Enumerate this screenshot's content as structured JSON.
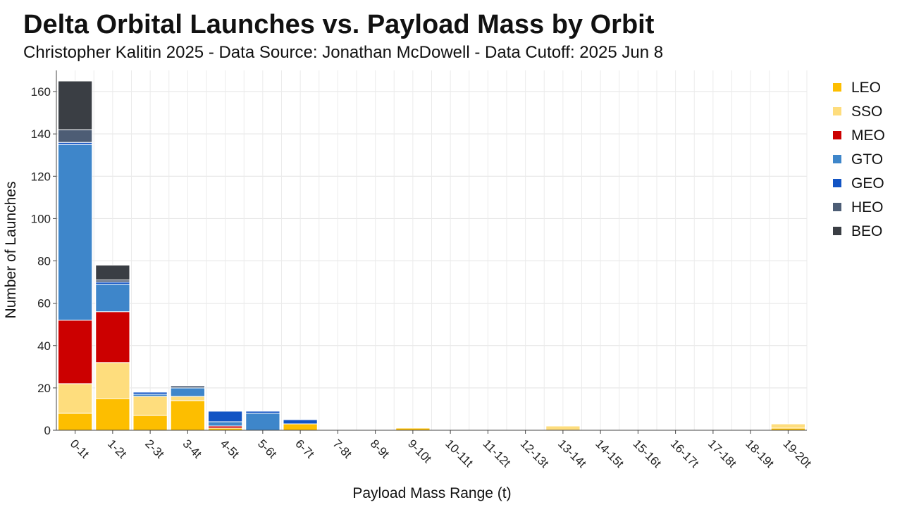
{
  "chart_data": {
    "type": "bar",
    "stacked": true,
    "title": "Delta Orbital Launches vs. Payload Mass by Orbit",
    "subtitle": "Christopher Kalitin 2025 - Data Source: Jonathan McDowell - Data Cutoff: 2025 Jun 8",
    "xlabel": "Payload Mass Range (t)",
    "ylabel": "Number of Launches",
    "ylim": [
      0,
      170
    ],
    "yticks": [
      0,
      20,
      40,
      60,
      80,
      100,
      120,
      140,
      160
    ],
    "grid": true,
    "legend_position": "right",
    "categories": [
      "0-1t",
      "1-2t",
      "2-3t",
      "3-4t",
      "4-5t",
      "5-6t",
      "6-7t",
      "7-8t",
      "8-9t",
      "9-10t",
      "10-11t",
      "11-12t",
      "12-13t",
      "13-14t",
      "14-15t",
      "15-16t",
      "16-17t",
      "17-18t",
      "18-19t",
      "19-20t"
    ],
    "series": [
      {
        "name": "LEO",
        "color": "#FDBE00",
        "values": [
          8,
          15,
          7,
          14,
          1,
          0,
          3,
          0,
          0,
          1,
          0,
          0,
          0,
          0,
          0,
          0,
          0,
          0,
          0,
          1
        ]
      },
      {
        "name": "SSO",
        "color": "#FEDD7D",
        "values": [
          14,
          17,
          9,
          2,
          0,
          0,
          0,
          0,
          0,
          0,
          0,
          0,
          0,
          2,
          0,
          0,
          0,
          0,
          0,
          2
        ]
      },
      {
        "name": "MEO",
        "color": "#CC0000",
        "values": [
          30,
          24,
          0,
          0,
          1,
          0,
          0,
          0,
          0,
          0,
          0,
          0,
          0,
          0,
          0,
          0,
          0,
          0,
          0,
          0
        ]
      },
      {
        "name": "GTO",
        "color": "#3E86CA",
        "values": [
          83,
          13,
          1,
          4,
          2,
          8,
          0,
          0,
          0,
          0,
          0,
          0,
          0,
          0,
          0,
          0,
          0,
          0,
          0,
          0
        ]
      },
      {
        "name": "GEO",
        "color": "#1254C4",
        "values": [
          1,
          1,
          1,
          0,
          5,
          1,
          2,
          0,
          0,
          0,
          0,
          0,
          0,
          0,
          0,
          0,
          0,
          0,
          0,
          0
        ]
      },
      {
        "name": "HEO",
        "color": "#4D5D75",
        "values": [
          6,
          1,
          0,
          1,
          0,
          0,
          0,
          0,
          0,
          0,
          0,
          0,
          0,
          0,
          0,
          0,
          0,
          0,
          0,
          0
        ]
      },
      {
        "name": "BEO",
        "color": "#3A3E44",
        "values": [
          23,
          7,
          0,
          0,
          0,
          0,
          0,
          0,
          0,
          0,
          0,
          0,
          0,
          0,
          0,
          0,
          0,
          0,
          0,
          0
        ]
      }
    ]
  }
}
